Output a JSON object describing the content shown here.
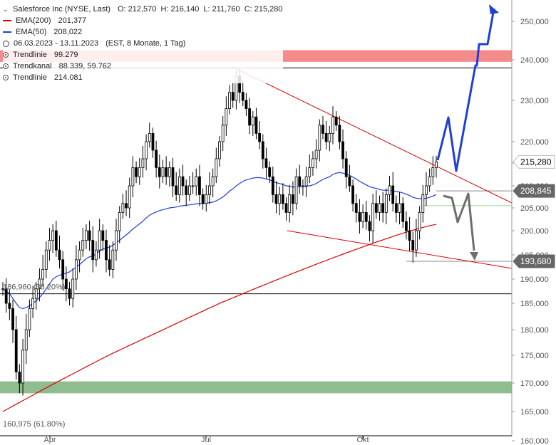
{
  "header": {
    "chevron": "⌄",
    "title": "Salesforce Inc (NYSE, Last)",
    "ohlc": "O: 212,570  H: 216,140  L: 211,760  C: 215,280",
    "ema200_label": "EMA(200)",
    "ema200_value": "201,377",
    "ema200_color": "#e00000",
    "ema50_label": "EMA(50)",
    "ema50_value": "208,022",
    "ema50_color": "#1f3fd6",
    "period": "06.03.2023 - 13.11.2023",
    "period_info": "(EST, 8 Monate, 1 Tag)",
    "trendline1": "Trendlinie",
    "trendline1_value": "99.279",
    "trendchannel": "Trendkanal",
    "trendchannel_value": "88.339, 59.762",
    "trendline2": "Trendlinie",
    "trendline2_value": "214.081"
  },
  "chart_data": {
    "type": "candlestick",
    "y_ticks": [
      160000,
      165000,
      170000,
      175000,
      180000,
      185000,
      190000,
      195000,
      200000,
      205000,
      210000,
      215000,
      220000,
      230000,
      240000,
      250000
    ],
    "y_tick_labels": [
      "160,000",
      "165,000",
      "170,000",
      "175,000",
      "180,000",
      "185,000",
      "190,000",
      "195,000",
      "200,000",
      "205,000",
      "210,000",
      "215,000",
      "220,000",
      "230,000",
      "240,000",
      "250,000"
    ],
    "ylim": [
      160000,
      250000
    ],
    "x_labels": [
      "Apr",
      "Jul",
      "Okt"
    ],
    "price_tags": [
      {
        "value": 215280,
        "label": "215,280",
        "style": "white"
      },
      {
        "value": 208845,
        "label": "208,845",
        "style": "gray"
      },
      {
        "value": 193680,
        "label": "193,680",
        "style": "gray"
      }
    ],
    "fib_levels": [
      {
        "value": 186960,
        "label": "186,960 (38.20%)"
      },
      {
        "value": 160975,
        "label": "160,975 (61.80%)"
      }
    ],
    "zones": [
      {
        "from": 239500,
        "to": 242500,
        "color": "#f48a8a"
      },
      {
        "from": 168200,
        "to": 170300,
        "color": "#8fbd8f"
      }
    ],
    "horizontal_lines": [
      238000,
      208845,
      205500,
      193680,
      186960
    ],
    "closes": [
      188,
      185,
      184,
      180,
      172,
      170,
      176,
      180,
      184,
      186,
      188,
      190,
      192,
      196,
      198,
      200,
      196,
      194,
      190,
      188,
      186,
      190,
      194,
      196,
      198,
      200,
      198,
      194,
      196,
      200,
      198,
      194,
      192,
      196,
      200,
      204,
      206,
      205,
      210,
      214,
      212,
      214,
      216,
      220,
      222,
      218,
      214,
      212,
      214,
      212,
      214,
      210,
      208,
      212,
      210,
      208,
      210,
      210,
      212,
      208,
      206,
      208,
      210,
      212,
      216,
      220,
      224,
      228,
      232,
      230,
      236,
      232,
      230,
      228,
      224,
      226,
      222,
      220,
      216,
      214,
      212,
      208,
      206,
      208,
      206,
      204,
      208,
      206,
      212,
      210,
      210,
      212,
      214,
      216,
      218,
      224,
      222,
      220,
      222,
      226,
      224,
      220,
      216,
      212,
      210,
      206,
      204,
      202,
      204,
      202,
      200,
      206,
      204,
      206,
      204,
      208,
      210,
      206,
      204,
      206,
      202,
      200,
      198,
      196,
      200,
      204,
      208,
      210,
      212,
      214,
      215.28
    ],
    "ema50": [
      188,
      187.5,
      187,
      186,
      185,
      184.2,
      184,
      184.2,
      184.5,
      185,
      185.5,
      186.2,
      187,
      188,
      189,
      190,
      190.5,
      190.8,
      191,
      191.2,
      191.5,
      192,
      192.5,
      193,
      193.6,
      194.2,
      194.6,
      194.8,
      195.2,
      195.8,
      196.2,
      196.4,
      196.6,
      197,
      197.5,
      198,
      198.6,
      199.1,
      199.7,
      200.4,
      200.9,
      201.5,
      202.1,
      202.8,
      203.4,
      203.8,
      204.1,
      204.4,
      204.6,
      204.8,
      205,
      205.1,
      205.2,
      205.4,
      205.5,
      205.6,
      205.7,
      205.8,
      205.9,
      206,
      206,
      206.1,
      206.2,
      206.3,
      206.6,
      207,
      207.5,
      208.1,
      208.8,
      209.3,
      210,
      210.5,
      211,
      211.3,
      211.5,
      211.7,
      211.8,
      211.8,
      211.7,
      211.5,
      211.3,
      211,
      210.7,
      210.5,
      210.3,
      210,
      209.9,
      209.7,
      209.8,
      209.8,
      209.8,
      209.9,
      210,
      210.2,
      210.5,
      211,
      211.4,
      211.7,
      212,
      212.5,
      212.8,
      212.9,
      212.8,
      212.6,
      212.3,
      211.9,
      211.5,
      211,
      210.6,
      210.2,
      209.8,
      209.6,
      209.4,
      209.2,
      209,
      209,
      209,
      208.9,
      208.7,
      208.6,
      208.4,
      208.1,
      207.8,
      207.4,
      207.2,
      207.1,
      207.1,
      207.2,
      207.4,
      207.7,
      208.02
    ],
    "ema200_start": 165,
    "ema200_end": 201.377
  },
  "arrows": {
    "bullish_color": "#1f3fd6",
    "bearish_color": "#6e6e6e"
  }
}
